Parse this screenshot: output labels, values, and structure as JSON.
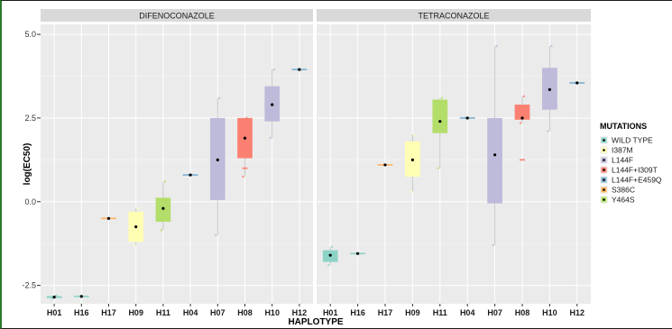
{
  "chart_data": {
    "type": "box",
    "title": "",
    "xlabel": "HAPLOTYPE",
    "ylabel": "log(EC50)",
    "ylim": [
      -3.05,
      5.3
    ],
    "yticks": [
      {
        "value": 5.0,
        "label": "5.0"
      },
      {
        "value": 2.5,
        "label": "2.5"
      },
      {
        "value": 0.0,
        "label": "0.0"
      },
      {
        "value": -2.5,
        "label": "-2.5"
      }
    ],
    "categories": [
      "H01",
      "H16",
      "H17",
      "H09",
      "H11",
      "H04",
      "H07",
      "H08",
      "H10",
      "H12"
    ],
    "grid": true,
    "legend": {
      "title": "MUTATIONS",
      "position": "right",
      "entries": [
        {
          "label": "WILD TYPE",
          "color": "#8dd3c7"
        },
        {
          "label": "I387M",
          "color": "#ffffb3"
        },
        {
          "label": "L144F",
          "color": "#bebada"
        },
        {
          "label": "L144F+I309T",
          "color": "#fb8072"
        },
        {
          "label": "L144F+E459Q",
          "color": "#80b1d3"
        },
        {
          "label": "S386C",
          "color": "#fdb462"
        },
        {
          "label": "Y464S",
          "color": "#b3de69"
        }
      ]
    },
    "panels": [
      {
        "name": "DIFENOCONAZOLE",
        "boxes": [
          {
            "cat": "H01",
            "mutation": 0,
            "min": -2.9,
            "q1": -2.88,
            "median": -2.85,
            "q3": -2.82,
            "max": -2.8,
            "mean": -2.85,
            "outliers": []
          },
          {
            "cat": "H16",
            "mutation": 0,
            "min": -2.83,
            "q1": -2.83,
            "median": -2.83,
            "q3": -2.83,
            "max": -2.83,
            "mean": -2.83,
            "outliers": []
          },
          {
            "cat": "H17",
            "mutation": 5,
            "min": -0.5,
            "q1": -0.5,
            "median": -0.5,
            "q3": -0.5,
            "max": -0.5,
            "mean": -0.5,
            "outliers": []
          },
          {
            "cat": "H09",
            "mutation": 1,
            "min": -1.3,
            "q1": -1.2,
            "median": -0.75,
            "q3": -0.3,
            "max": -0.2,
            "mean": -0.75,
            "outliers": []
          },
          {
            "cat": "H11",
            "mutation": 6,
            "min": -0.85,
            "q1": -0.6,
            "median": -0.2,
            "q3": 0.12,
            "max": 0.6,
            "mean": -0.2,
            "outliers": []
          },
          {
            "cat": "H04",
            "mutation": 4,
            "min": 0.8,
            "q1": 0.8,
            "median": 0.8,
            "q3": 0.8,
            "max": 0.8,
            "mean": 0.8,
            "outliers": []
          },
          {
            "cat": "H07",
            "mutation": 2,
            "min": -1.0,
            "q1": 0.05,
            "median": 1.25,
            "q3": 2.5,
            "max": 3.1,
            "mean": 1.25,
            "outliers": []
          },
          {
            "cat": "H08",
            "mutation": 3,
            "min": 0.75,
            "q1": 1.3,
            "median": 1.9,
            "q3": 2.5,
            "max": 2.5,
            "mean": 1.9,
            "outliers": [
              1.0
            ]
          },
          {
            "cat": "H10",
            "mutation": 2,
            "min": 1.9,
            "q1": 2.4,
            "median": 2.9,
            "q3": 3.45,
            "max": 3.95,
            "mean": 2.9,
            "outliers": []
          },
          {
            "cat": "H12",
            "mutation": 4,
            "min": 3.95,
            "q1": 3.95,
            "median": 3.95,
            "q3": 3.95,
            "max": 3.95,
            "mean": 3.95,
            "outliers": []
          }
        ]
      },
      {
        "name": "TETRACONAZOLE",
        "boxes": [
          {
            "cat": "H01",
            "mutation": 0,
            "min": -1.9,
            "q1": -1.8,
            "median": -1.6,
            "q3": -1.45,
            "max": -1.35,
            "mean": -1.6,
            "outliers": []
          },
          {
            "cat": "H16",
            "mutation": 0,
            "min": -1.55,
            "q1": -1.55,
            "median": -1.55,
            "q3": -1.55,
            "max": -1.55,
            "mean": -1.55,
            "outliers": []
          },
          {
            "cat": "H17",
            "mutation": 5,
            "min": 1.1,
            "q1": 1.1,
            "median": 1.1,
            "q3": 1.1,
            "max": 1.1,
            "mean": 1.1,
            "outliers": []
          },
          {
            "cat": "H09",
            "mutation": 1,
            "min": 0.3,
            "q1": 0.75,
            "median": 1.25,
            "q3": 1.8,
            "max": 2.0,
            "mean": 1.25,
            "outliers": []
          },
          {
            "cat": "H11",
            "mutation": 6,
            "min": 1.0,
            "q1": 2.05,
            "median": 2.4,
            "q3": 3.05,
            "max": 3.1,
            "mean": 2.4,
            "outliers": []
          },
          {
            "cat": "H04",
            "mutation": 4,
            "min": 2.5,
            "q1": 2.5,
            "median": 2.5,
            "q3": 2.5,
            "max": 2.5,
            "mean": 2.5,
            "outliers": []
          },
          {
            "cat": "H07",
            "mutation": 2,
            "min": -1.3,
            "q1": -0.05,
            "median": 1.4,
            "q3": 2.5,
            "max": 4.65,
            "mean": 1.4,
            "outliers": []
          },
          {
            "cat": "H08",
            "mutation": 3,
            "min": 2.35,
            "q1": 2.45,
            "median": 2.5,
            "q3": 2.9,
            "max": 3.15,
            "mean": 2.5,
            "outliers": [
              1.25
            ]
          },
          {
            "cat": "H10",
            "mutation": 2,
            "min": 2.1,
            "q1": 2.75,
            "median": 3.35,
            "q3": 4.0,
            "max": 4.65,
            "mean": 3.35,
            "outliers": []
          },
          {
            "cat": "H12",
            "mutation": 4,
            "min": 3.55,
            "q1": 3.55,
            "median": 3.55,
            "q3": 3.55,
            "max": 3.55,
            "mean": 3.55,
            "outliers": []
          }
        ]
      }
    ]
  }
}
